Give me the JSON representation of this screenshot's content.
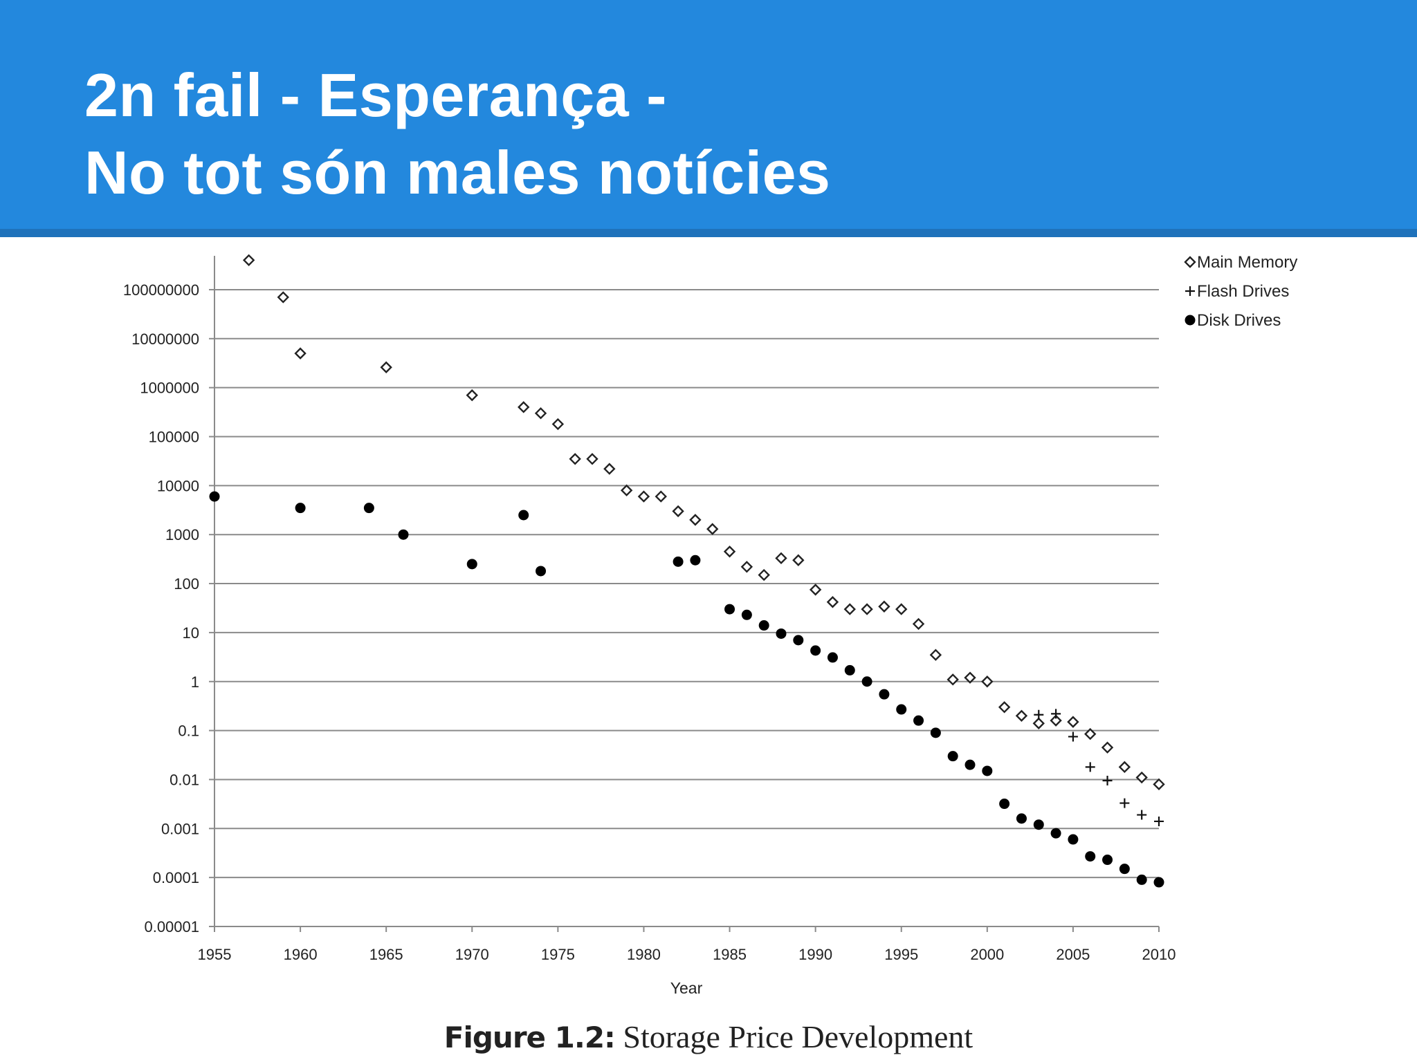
{
  "slide": {
    "title_line1": "2n fail - Esperança -",
    "title_line2": "No tot són males notícies",
    "header_color": "#2388dd",
    "header_stripe_color": "#1f72bb"
  },
  "figure": {
    "caption_label": "Figure 1.2:",
    "caption_text": " Storage Price Development"
  },
  "chart_data": {
    "type": "scatter",
    "title": "Storage Price Development",
    "xlabel": "Year",
    "ylabel": "",
    "yscale": "log",
    "xlim": [
      1955,
      2010
    ],
    "ylim": [
      1e-05,
      400000000
    ],
    "x_ticks": [
      "1955",
      "1960",
      "1965",
      "1970",
      "1975",
      "1980",
      "1985",
      "1990",
      "1995",
      "2000",
      "2005",
      "2010"
    ],
    "y_ticks": [
      "100000000",
      "10000000",
      "1000000",
      "100000",
      "10000",
      "1000",
      "100",
      "10",
      "1",
      "0.1",
      "0.01",
      "0.001",
      "0.0001",
      "0.00001"
    ],
    "grid": "horizontal",
    "legend_position": "right-top",
    "series": [
      {
        "name": "Main Memory",
        "marker": "diamond-open",
        "points": [
          [
            1957,
            400000000
          ],
          [
            1959,
            70000000
          ],
          [
            1960,
            5000000
          ],
          [
            1965,
            2600000
          ],
          [
            1970,
            700000
          ],
          [
            1973,
            400000
          ],
          [
            1974,
            300000
          ],
          [
            1975,
            180000
          ],
          [
            1976,
            35000
          ],
          [
            1977,
            35000
          ],
          [
            1978,
            22000
          ],
          [
            1979,
            8000
          ],
          [
            1980,
            6000
          ],
          [
            1981,
            6000
          ],
          [
            1982,
            3000
          ],
          [
            1983,
            2000
          ],
          [
            1984,
            1300
          ],
          [
            1985,
            450
          ],
          [
            1986,
            220
          ],
          [
            1987,
            150
          ],
          [
            1988,
            330
          ],
          [
            1989,
            300
          ],
          [
            1990,
            75
          ],
          [
            1991,
            42
          ],
          [
            1992,
            30
          ],
          [
            1993,
            30
          ],
          [
            1994,
            34
          ],
          [
            1995,
            30
          ],
          [
            1996,
            15
          ],
          [
            1997,
            3.5
          ],
          [
            1998,
            1.1
          ],
          [
            1999,
            1.2
          ],
          [
            2000,
            1.0
          ],
          [
            2001,
            0.3
          ],
          [
            2002,
            0.2
          ],
          [
            2003,
            0.14
          ],
          [
            2004,
            0.16
          ],
          [
            2005,
            0.15
          ],
          [
            2006,
            0.085
          ],
          [
            2007,
            0.045
          ],
          [
            2008,
            0.018
          ],
          [
            2009,
            0.011
          ],
          [
            2010,
            0.008
          ]
        ]
      },
      {
        "name": "Flash Drives",
        "marker": "plus",
        "points": [
          [
            2003,
            0.21
          ],
          [
            2004,
            0.22
          ],
          [
            2005,
            0.075
          ],
          [
            2006,
            0.018
          ],
          [
            2007,
            0.0095
          ],
          [
            2008,
            0.0033
          ],
          [
            2009,
            0.0019
          ],
          [
            2010,
            0.0014
          ]
        ]
      },
      {
        "name": "Disk Drives",
        "marker": "circle-filled",
        "points": [
          [
            1955,
            6000
          ],
          [
            1960,
            3500
          ],
          [
            1964,
            3500
          ],
          [
            1966,
            1000
          ],
          [
            1970,
            250
          ],
          [
            1973,
            2500
          ],
          [
            1974,
            180
          ],
          [
            1982,
            280
          ],
          [
            1983,
            300
          ],
          [
            1985,
            30
          ],
          [
            1986,
            23
          ],
          [
            1987,
            14
          ],
          [
            1988,
            9.5
          ],
          [
            1989,
            7
          ],
          [
            1990,
            4.3
          ],
          [
            1991,
            3.1
          ],
          [
            1992,
            1.7
          ],
          [
            1993,
            1.0
          ],
          [
            1994,
            0.55
          ],
          [
            1995,
            0.27
          ],
          [
            1996,
            0.16
          ],
          [
            1997,
            0.09
          ],
          [
            1998,
            0.03
          ],
          [
            1999,
            0.02
          ],
          [
            2000,
            0.015
          ],
          [
            2001,
            0.0032
          ],
          [
            2002,
            0.0016
          ],
          [
            2003,
            0.0012
          ],
          [
            2004,
            0.0008
          ],
          [
            2005,
            0.0006
          ],
          [
            2006,
            0.00027
          ],
          [
            2007,
            0.00023
          ],
          [
            2008,
            0.00015
          ],
          [
            2009,
            9e-05
          ],
          [
            2010,
            8e-05
          ]
        ]
      }
    ]
  }
}
